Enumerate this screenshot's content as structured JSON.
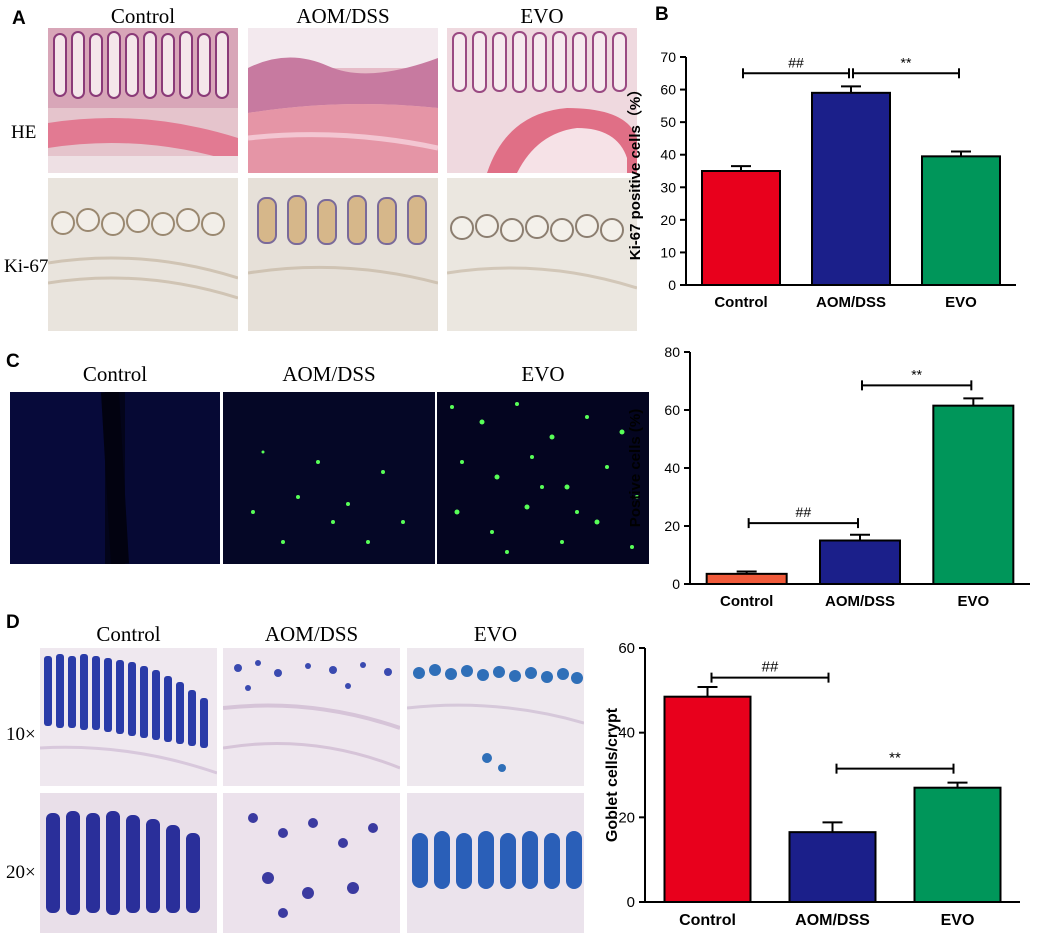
{
  "panels": {
    "A": {
      "letter": "A",
      "columns": [
        "Control",
        "AOM/DSS",
        "EVO"
      ],
      "rows": [
        "HE",
        "Ki-67"
      ]
    },
    "B": {
      "letter": "B"
    },
    "C": {
      "letter": "C",
      "columns": [
        "Control",
        "AOM/DSS",
        "EVO"
      ]
    },
    "D": {
      "letter": "D",
      "columns": [
        "Control",
        "AOM/DSS",
        "EVO"
      ],
      "rows": [
        "10×",
        "20×"
      ]
    }
  },
  "colors": {
    "control_red": "#e8001c",
    "control_orange": "#f05a3a",
    "aom_blue": "#1b1f8a",
    "evo_green": "#00965a",
    "he_pink": "#d98aa6",
    "ki67_beige": "#e6ded2",
    "fluor_dark": "#03041a",
    "fluor_green": "#58ff58",
    "ab_blue": "#2a3ba8"
  },
  "chart_data": [
    {
      "panel": "B",
      "type": "bar",
      "categories": [
        "Control",
        "AOM/DSS",
        "EVO"
      ],
      "values": [
        35,
        59,
        39.5
      ],
      "errors": [
        1.5,
        2,
        1.5
      ],
      "ylabel": "Ki-67 positive cells（%）",
      "ylim": [
        0,
        70
      ],
      "yticks": [
        0,
        10,
        20,
        30,
        40,
        50,
        60,
        70
      ],
      "colors": [
        "#e8001c",
        "#1b1f8a",
        "#00965a"
      ],
      "annotations": [
        {
          "label": "##",
          "from": 0,
          "to": 1,
          "y": 65
        },
        {
          "label": "**",
          "from": 1,
          "to": 2,
          "y": 65
        }
      ]
    },
    {
      "panel": "C",
      "type": "bar",
      "categories": [
        "Control",
        "AOM/DSS",
        "EVO"
      ],
      "values": [
        3.5,
        15,
        61.5
      ],
      "errors": [
        0.8,
        2,
        2.5
      ],
      "ylabel": "Postive cells (%)",
      "ylim": [
        0,
        80
      ],
      "yticks": [
        0,
        20,
        40,
        60,
        80
      ],
      "colors": [
        "#f05a3a",
        "#1b1f8a",
        "#00965a"
      ],
      "annotations": [
        {
          "label": "##",
          "from": 0,
          "to": 1,
          "y": 21
        },
        {
          "label": "**",
          "from": 1,
          "to": 2,
          "y": 68.5
        }
      ]
    },
    {
      "panel": "D",
      "type": "bar",
      "categories": [
        "Control",
        "AOM/DSS",
        "EVO"
      ],
      "values": [
        48.5,
        16.5,
        27
      ],
      "errors": [
        2.3,
        2.3,
        1.2
      ],
      "ylabel": "Goblet cells/crypt",
      "ylim": [
        0,
        60
      ],
      "yticks": [
        0,
        20,
        40,
        60
      ],
      "colors": [
        "#e8001c",
        "#1b1f8a",
        "#00965a"
      ],
      "annotations": [
        {
          "label": "##",
          "from": 0,
          "to": 1,
          "y": 53
        },
        {
          "label": "**",
          "from": 1,
          "to": 2,
          "y": 31.5
        }
      ]
    }
  ]
}
